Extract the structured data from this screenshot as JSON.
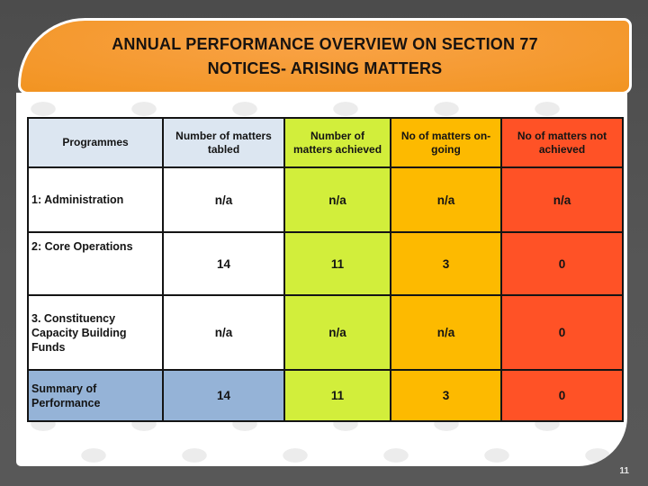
{
  "slide": {
    "title_line1": "ANNUAL PERFORMANCE OVERVIEW ON SECTION 77",
    "title_line2": "NOTICES- ARISING MATTERS",
    "page_number": "11"
  },
  "table": {
    "columns": [
      "Programmes",
      "Number of matters tabled",
      "Number of matters achieved",
      "No of matters on-going",
      "No of matters not achieved"
    ],
    "rows": [
      {
        "label": "1: Administration",
        "values": [
          "n/a",
          "n/a",
          "n/a",
          "n/a"
        ]
      },
      {
        "label": "2: Core Operations",
        "values": [
          "14",
          "11",
          "3",
          "0"
        ]
      },
      {
        "label": "3. Constituency Capacity Building Funds",
        "values": [
          "n/a",
          "n/a",
          "n/a",
          "0"
        ]
      },
      {
        "label": "Summary of Performance",
        "values": [
          "14",
          "11",
          "3",
          "0"
        ]
      }
    ]
  },
  "colors": {
    "banner_orange": "#f29422",
    "header_light_blue": "#dce6f1",
    "achieved_green": "#d2ee3b",
    "ongoing_amber": "#fdba00",
    "not_achieved_red": "#ff5226",
    "summary_blue": "#95b3d7",
    "background_gray": "#565656",
    "table_border": "#141414"
  }
}
